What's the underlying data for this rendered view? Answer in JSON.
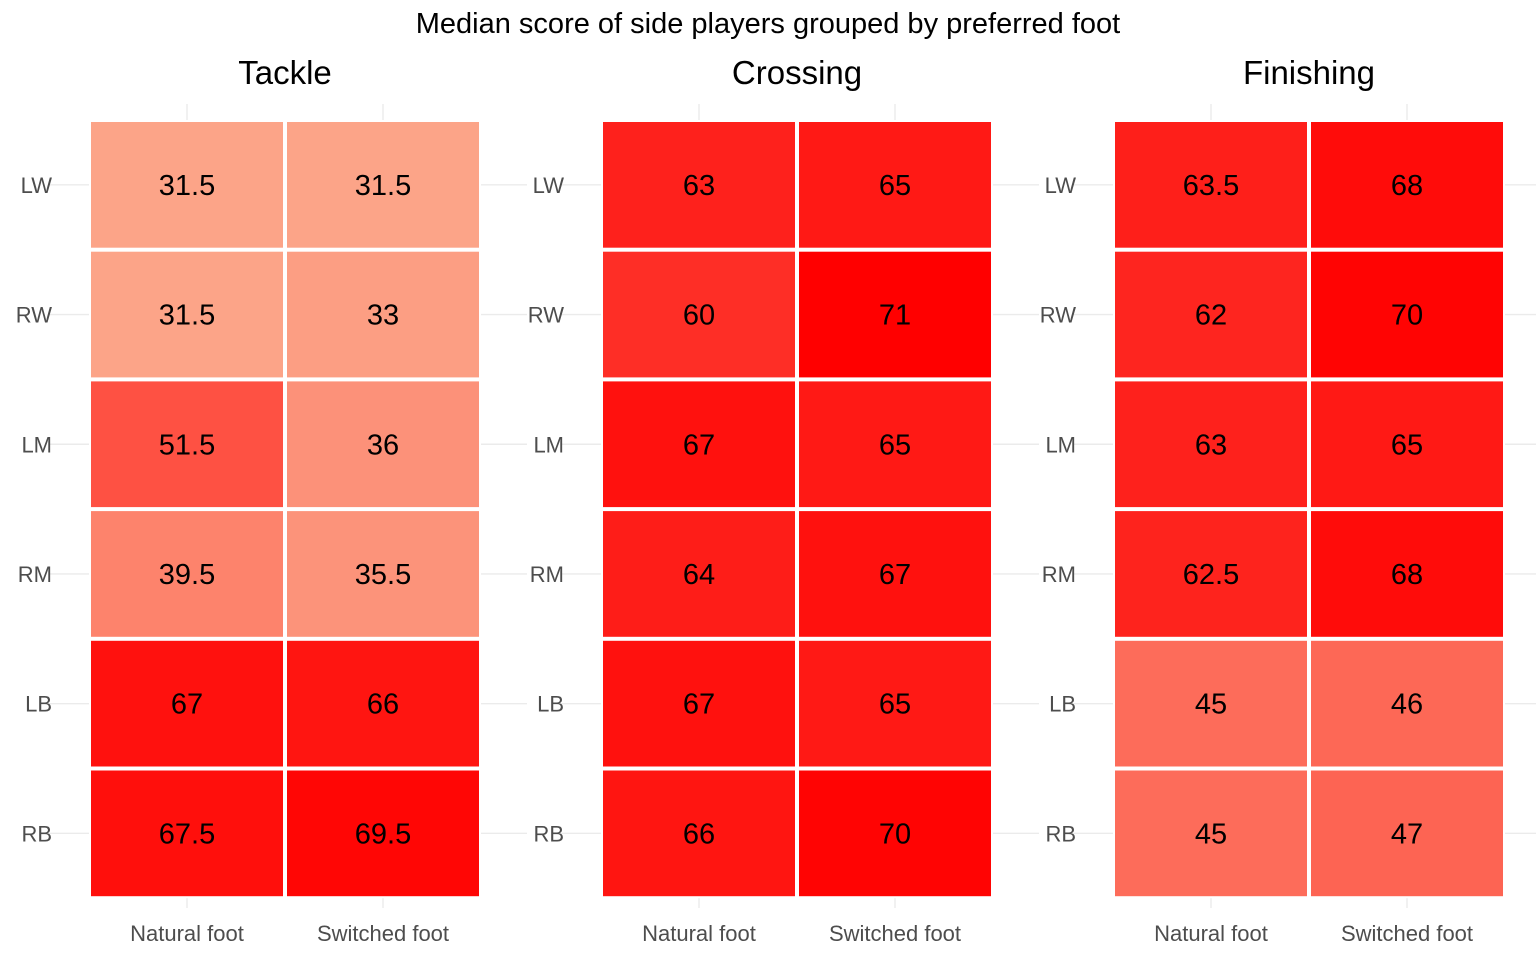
{
  "chart_data": {
    "type": "heatmap",
    "title": "Median score of side players grouped by preferred foot",
    "x_categories": [
      "Natural foot",
      "Switched foot"
    ],
    "y_categories": [
      "LW",
      "RW",
      "LM",
      "RM",
      "LB",
      "RB"
    ],
    "color_low": "#fca488",
    "color_high": "#ff0000",
    "value_range": [
      31.5,
      71
    ],
    "grid": true,
    "legend": "none",
    "facets": [
      {
        "title": "Tackle",
        "values": [
          [
            31.5,
            31.5
          ],
          [
            31.5,
            33
          ],
          [
            51.5,
            36
          ],
          [
            39.5,
            35.5
          ],
          [
            67,
            66
          ],
          [
            67.5,
            69.5
          ]
        ]
      },
      {
        "title": "Crossing",
        "values": [
          [
            63,
            65
          ],
          [
            60,
            71
          ],
          [
            67,
            65
          ],
          [
            64,
            67
          ],
          [
            67,
            65
          ],
          [
            66,
            70
          ]
        ]
      },
      {
        "title": "Finishing",
        "values": [
          [
            63.5,
            68
          ],
          [
            62,
            70
          ],
          [
            63,
            65
          ],
          [
            62.5,
            68
          ],
          [
            45,
            46
          ],
          [
            45,
            47
          ]
        ]
      }
    ]
  }
}
